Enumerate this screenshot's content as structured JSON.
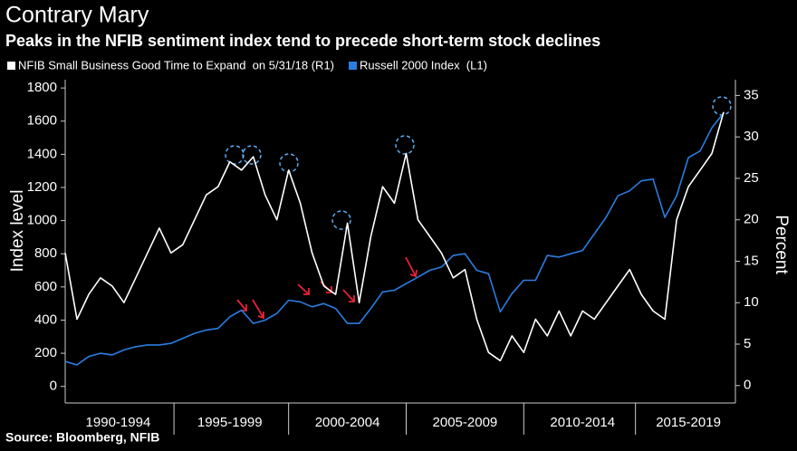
{
  "chart_data": {
    "type": "line",
    "title": "Contrary Mary",
    "subtitle": "Peaks in the NFIB sentiment index tend to precede short-term stock declines",
    "ylabel": "Index level",
    "y2label": "Percent",
    "source": "Source: Bloomberg, NFIB",
    "x": [
      1990.5,
      1991,
      1991.5,
      1992,
      1992.5,
      1993,
      1993.5,
      1994,
      1994.5,
      1995,
      1995.5,
      1996,
      1996.5,
      1997,
      1997.5,
      1998,
      1998.5,
      1999,
      1999.5,
      2000,
      2000.5,
      2001,
      2001.5,
      2002,
      2002.5,
      2003,
      2003.5,
      2004,
      2004.5,
      2005,
      2005.5,
      2006,
      2006.5,
      2007,
      2007.5,
      2008,
      2008.5,
      2009,
      2009.5,
      2010,
      2010.5,
      2011,
      2011.5,
      2012,
      2012.5,
      2013,
      2013.5,
      2014,
      2014.5,
      2015,
      2015.5,
      2016,
      2016.5,
      2017,
      2017.5,
      2018,
      2018.5
    ],
    "series": [
      {
        "name": "NFIB Small Business Good Time to Expand  on 5/31/18 (R1)",
        "color": "#ffffff",
        "axis": "y2",
        "values": [
          16,
          8,
          11,
          13,
          12,
          10,
          13,
          16,
          19,
          16,
          17,
          20,
          23,
          24,
          27,
          26,
          27.6,
          23,
          20,
          26,
          22,
          16,
          12,
          11,
          19.6,
          10,
          18,
          24,
          22,
          28,
          20,
          18,
          16,
          13,
          14,
          8,
          4,
          3,
          6,
          4,
          8,
          6,
          9,
          6,
          9,
          8,
          10,
          12,
          14,
          11,
          9,
          8,
          20,
          24,
          26,
          28,
          33
        ]
      },
      {
        "name": "Russell 2000 Index  (L1)",
        "color": "#2a7de1",
        "values": [
          150,
          130,
          180,
          200,
          190,
          220,
          240,
          250,
          250,
          260,
          290,
          320,
          340,
          350,
          420,
          460,
          380,
          400,
          440,
          520,
          510,
          480,
          500,
          470,
          380,
          380,
          470,
          570,
          580,
          620,
          660,
          700,
          720,
          790,
          800,
          700,
          680,
          450,
          560,
          640,
          640,
          790,
          780,
          800,
          820,
          920,
          1020,
          1150,
          1180,
          1240,
          1250,
          1020,
          1150,
          1380,
          1420,
          1560,
          1650
        ]
      }
    ],
    "xlim": [
      1990.5,
      2019
    ],
    "xticks": [
      {
        "value": 1992.75,
        "label": "1990-1994"
      },
      {
        "value": 1997.5,
        "label": "1995-1999"
      },
      {
        "value": 2002.5,
        "label": "2000-2004"
      },
      {
        "value": 2007.5,
        "label": "2005-2009"
      },
      {
        "value": 2012.5,
        "label": "2010-2014"
      },
      {
        "value": 2017,
        "label": "2015-2019"
      }
    ],
    "ylim": [
      -100,
      1850
    ],
    "yticks": [
      0,
      200,
      400,
      600,
      800,
      1000,
      1200,
      1400,
      1600,
      1800
    ],
    "y2lim": [
      -2.1,
      36.9
    ],
    "y2ticks": [
      0,
      5,
      10,
      15,
      20,
      25,
      30,
      35
    ]
  }
}
